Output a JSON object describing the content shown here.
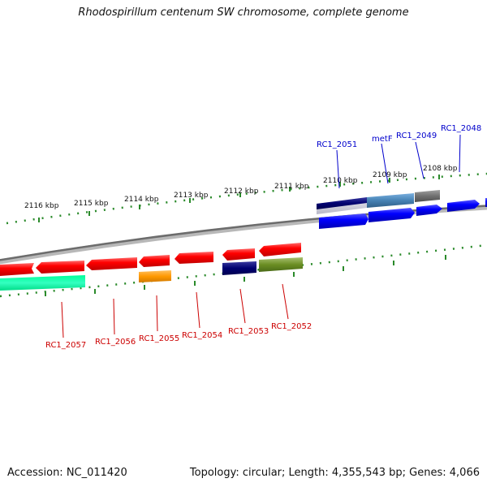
{
  "title": "Rhodospirillum centenum SW chromosome, complete genome",
  "footer": {
    "accession": "Accession: NC_011420",
    "topology": "Topology: circular; Length: 4,355,543 bp; Genes: 4,066"
  },
  "scale": {
    "ticks": [
      "2116 kbp",
      "2115 kbp",
      "2114 kbp",
      "2113 kbp",
      "2112 kbp",
      "2111 kbp",
      "2110 kbp",
      "2109 kbp",
      "2108 kbp"
    ]
  },
  "genes": {
    "forward": [
      "RC1_2051",
      "metF",
      "RC1_2049",
      "RC1_2048"
    ],
    "reverse": [
      "RC1_2057",
      "RC1_2056",
      "RC1_2055",
      "RC1_2054",
      "RC1_2053",
      "RC1_2052"
    ]
  },
  "colors": {
    "forward_label": "#0000cc",
    "reverse_label": "#cc0000",
    "cds_forward": "#0000ff",
    "cds_reverse": "#ff0000",
    "tick": "#2a8a2a",
    "backbone": "#8c8c8c"
  }
}
